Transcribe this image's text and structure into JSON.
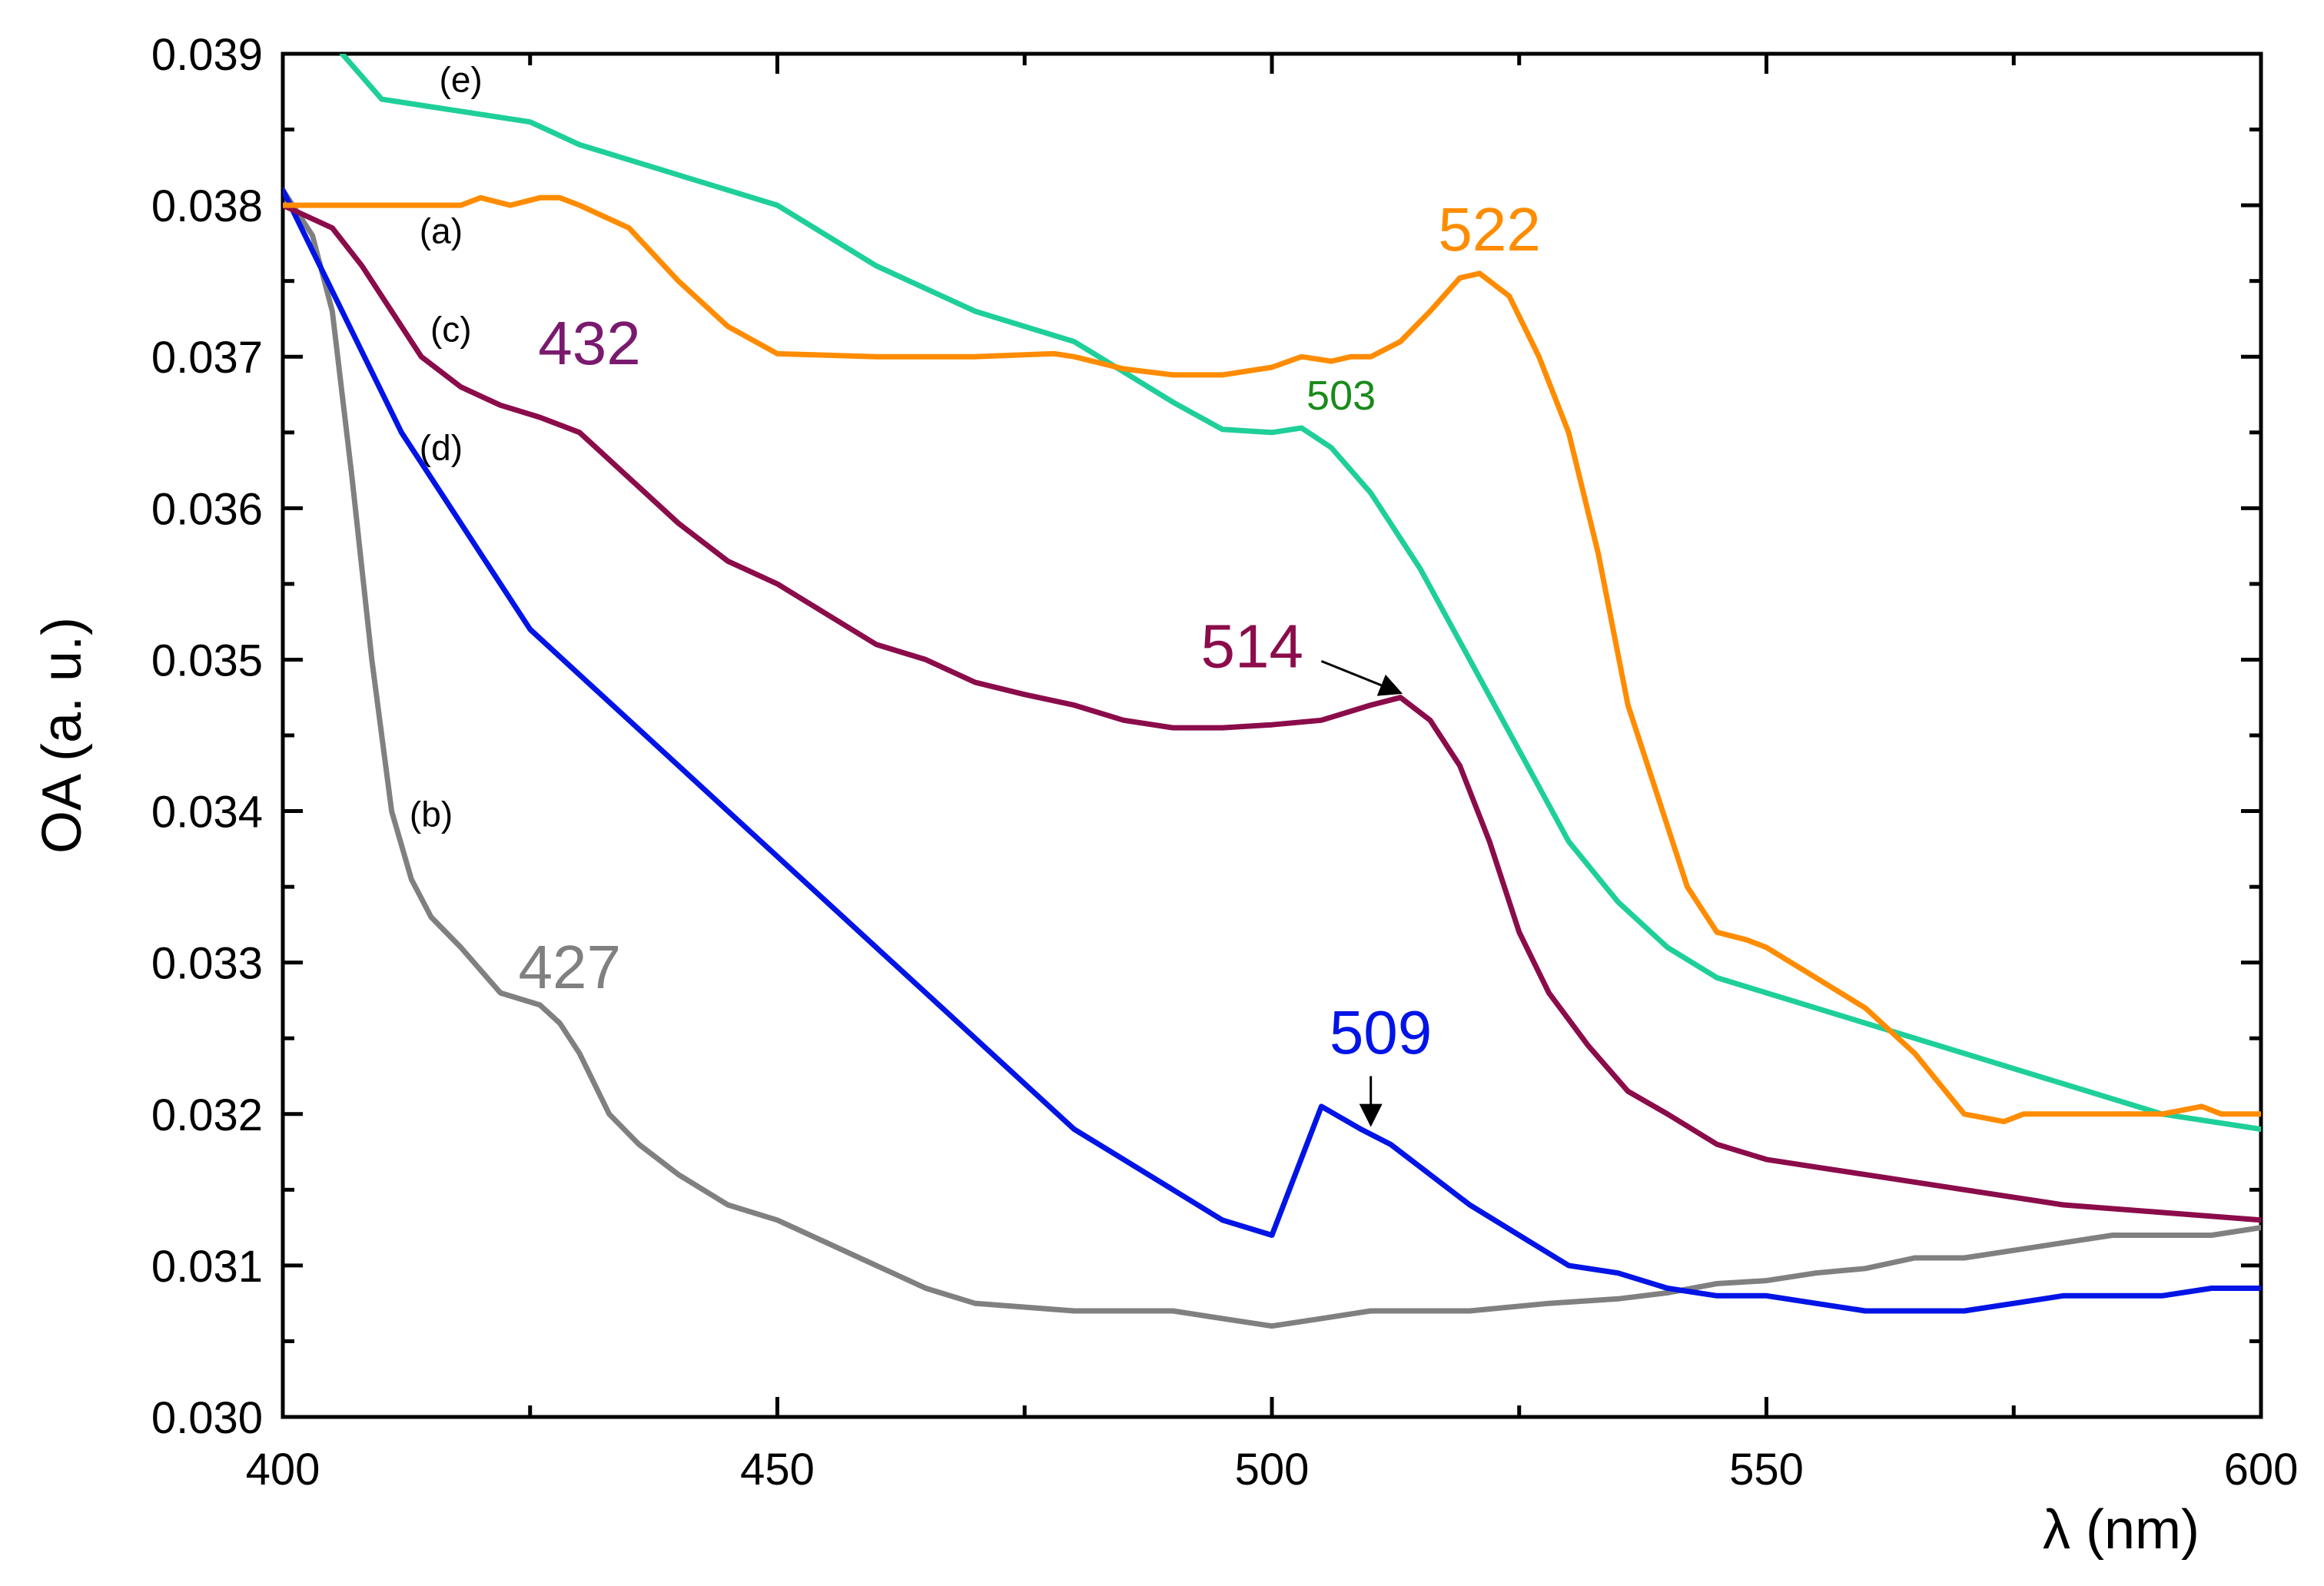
{
  "chart_data": {
    "type": "line",
    "title": "",
    "xlabel": "λ (nm)",
    "ylabel": "OA (a. u.)",
    "xlim": [
      400,
      600
    ],
    "ylim": [
      0.03,
      0.039
    ],
    "grid": false,
    "x_ticks": [
      400,
      450,
      500,
      550,
      600
    ],
    "x_tick_labels": [
      "400",
      "450",
      "500",
      "550",
      "600"
    ],
    "y_ticks": [
      0.03,
      0.031,
      0.032,
      0.033,
      0.034,
      0.035,
      0.036,
      0.037,
      0.038,
      0.039
    ],
    "y_tick_labels": [
      "0.030",
      "0.031",
      "0.032",
      "0.033",
      "0.034",
      "0.035",
      "0.036",
      "0.037",
      "0.038",
      "0.039"
    ],
    "series": [
      {
        "name": "(a)",
        "color": "#ff8c00",
        "points": [
          [
            400,
            0.038
          ],
          [
            410,
            0.038
          ],
          [
            418,
            0.038
          ],
          [
            420,
            0.03805
          ],
          [
            423,
            0.038
          ],
          [
            426,
            0.03805
          ],
          [
            428,
            0.03805
          ],
          [
            430,
            0.038
          ],
          [
            435,
            0.03785
          ],
          [
            440,
            0.0375
          ],
          [
            445,
            0.0372
          ],
          [
            450,
            0.03702
          ],
          [
            455,
            0.03701
          ],
          [
            460,
            0.037
          ],
          [
            470,
            0.037
          ],
          [
            478,
            0.03702
          ],
          [
            480,
            0.037
          ],
          [
            485,
            0.03692
          ],
          [
            490,
            0.03688
          ],
          [
            495,
            0.03688
          ],
          [
            500,
            0.03693
          ],
          [
            503,
            0.037
          ],
          [
            506,
            0.03697
          ],
          [
            508,
            0.037
          ],
          [
            510,
            0.037
          ],
          [
            513,
            0.0371
          ],
          [
            516,
            0.0373
          ],
          [
            519,
            0.03752
          ],
          [
            521,
            0.03755
          ],
          [
            524,
            0.0374
          ],
          [
            527,
            0.037
          ],
          [
            530,
            0.0365
          ],
          [
            533,
            0.0357
          ],
          [
            536,
            0.0347
          ],
          [
            539,
            0.0341
          ],
          [
            542,
            0.0335
          ],
          [
            545,
            0.0332
          ],
          [
            548,
            0.03315
          ],
          [
            550,
            0.0331
          ],
          [
            555,
            0.0329
          ],
          [
            560,
            0.0327
          ],
          [
            565,
            0.0324
          ],
          [
            570,
            0.032
          ],
          [
            574,
            0.03195
          ],
          [
            576,
            0.032
          ],
          [
            580,
            0.032
          ],
          [
            590,
            0.032
          ],
          [
            594,
            0.03205
          ],
          [
            596,
            0.032
          ],
          [
            600,
            0.032
          ]
        ]
      },
      {
        "name": "(b)",
        "color": "#808080",
        "points": [
          [
            400,
            0.0381
          ],
          [
            403,
            0.0378
          ],
          [
            405,
            0.0373
          ],
          [
            407,
            0.0362
          ],
          [
            409,
            0.035
          ],
          [
            411,
            0.034
          ],
          [
            413,
            0.03355
          ],
          [
            415,
            0.0333
          ],
          [
            418,
            0.0331
          ],
          [
            422,
            0.0328
          ],
          [
            426,
            0.03272
          ],
          [
            428,
            0.0326
          ],
          [
            430,
            0.0324
          ],
          [
            433,
            0.032
          ],
          [
            436,
            0.0318
          ],
          [
            440,
            0.0316
          ],
          [
            445,
            0.0314
          ],
          [
            450,
            0.0313
          ],
          [
            455,
            0.03115
          ],
          [
            460,
            0.031
          ],
          [
            465,
            0.03085
          ],
          [
            470,
            0.03075
          ],
          [
            480,
            0.0307
          ],
          [
            490,
            0.0307
          ],
          [
            495,
            0.03065
          ],
          [
            500,
            0.0306
          ],
          [
            505,
            0.03065
          ],
          [
            510,
            0.0307
          ],
          [
            520,
            0.0307
          ],
          [
            528,
            0.03075
          ],
          [
            535,
            0.03078
          ],
          [
            540,
            0.03082
          ],
          [
            545,
            0.03088
          ],
          [
            550,
            0.0309
          ],
          [
            555,
            0.03095
          ],
          [
            560,
            0.03098
          ],
          [
            565,
            0.03105
          ],
          [
            570,
            0.03105
          ],
          [
            575,
            0.0311
          ],
          [
            580,
            0.03115
          ],
          [
            585,
            0.0312
          ],
          [
            590,
            0.0312
          ],
          [
            595,
            0.0312
          ],
          [
            600,
            0.03125
          ]
        ]
      },
      {
        "name": "(c)",
        "color": "#8b0c4a",
        "points": [
          [
            400,
            0.038
          ],
          [
            405,
            0.03785
          ],
          [
            408,
            0.0376
          ],
          [
            411,
            0.0373
          ],
          [
            414,
            0.037
          ],
          [
            418,
            0.0368
          ],
          [
            422,
            0.03668
          ],
          [
            426,
            0.0366
          ],
          [
            430,
            0.0365
          ],
          [
            435,
            0.0362
          ],
          [
            440,
            0.0359
          ],
          [
            445,
            0.03565
          ],
          [
            450,
            0.0355
          ],
          [
            455,
            0.0353
          ],
          [
            460,
            0.0351
          ],
          [
            465,
            0.035
          ],
          [
            470,
            0.03485
          ],
          [
            475,
            0.03477
          ],
          [
            480,
            0.0347
          ],
          [
            485,
            0.0346
          ],
          [
            490,
            0.03455
          ],
          [
            495,
            0.03455
          ],
          [
            500,
            0.03457
          ],
          [
            505,
            0.0346
          ],
          [
            510,
            0.0347
          ],
          [
            513,
            0.03475
          ],
          [
            516,
            0.0346
          ],
          [
            519,
            0.0343
          ],
          [
            522,
            0.0338
          ],
          [
            525,
            0.0332
          ],
          [
            528,
            0.0328
          ],
          [
            532,
            0.03245
          ],
          [
            536,
            0.03215
          ],
          [
            540,
            0.032
          ],
          [
            545,
            0.0318
          ],
          [
            550,
            0.0317
          ],
          [
            555,
            0.03165
          ],
          [
            560,
            0.0316
          ],
          [
            570,
            0.0315
          ],
          [
            580,
            0.0314
          ],
          [
            590,
            0.03135
          ],
          [
            600,
            0.0313
          ]
        ]
      },
      {
        "name": "(d)",
        "color": "#0014e6",
        "points": [
          [
            400,
            0.0381
          ],
          [
            403,
            0.0377
          ],
          [
            406,
            0.0373
          ],
          [
            409,
            0.0369
          ],
          [
            412,
            0.0365
          ],
          [
            416,
            0.0361
          ],
          [
            420,
            0.0357
          ],
          [
            425,
            0.0352
          ],
          [
            430,
            0.0349
          ],
          [
            435,
            0.0346
          ],
          [
            440,
            0.0343
          ],
          [
            445,
            0.034
          ],
          [
            450,
            0.0337
          ],
          [
            455,
            0.0334
          ],
          [
            460,
            0.0331
          ],
          [
            465,
            0.0328
          ],
          [
            470,
            0.0325
          ],
          [
            475,
            0.0322
          ],
          [
            480,
            0.0319
          ],
          [
            485,
            0.0317
          ],
          [
            490,
            0.0315
          ],
          [
            495,
            0.0313
          ],
          [
            500,
            0.0312
          ],
          [
            505,
            0.03205
          ],
          [
            509,
            0.0319
          ],
          [
            512,
            0.0318
          ],
          [
            516,
            0.0316
          ],
          [
            520,
            0.0314
          ],
          [
            525,
            0.0312
          ],
          [
            530,
            0.031
          ],
          [
            535,
            0.03095
          ],
          [
            540,
            0.03085
          ],
          [
            545,
            0.0308
          ],
          [
            550,
            0.0308
          ],
          [
            555,
            0.03075
          ],
          [
            560,
            0.0307
          ],
          [
            565,
            0.0307
          ],
          [
            570,
            0.0307
          ],
          [
            575,
            0.03075
          ],
          [
            580,
            0.0308
          ],
          [
            585,
            0.0308
          ],
          [
            590,
            0.0308
          ],
          [
            595,
            0.03085
          ],
          [
            600,
            0.03085
          ]
        ]
      },
      {
        "name": "(e)",
        "color": "#1fcf9a",
        "points": [
          [
            406,
            0.039
          ],
          [
            410,
            0.0387
          ],
          [
            415,
            0.03865
          ],
          [
            420,
            0.0386
          ],
          [
            425,
            0.03855
          ],
          [
            430,
            0.0384
          ],
          [
            440,
            0.0382
          ],
          [
            450,
            0.038
          ],
          [
            460,
            0.0376
          ],
          [
            470,
            0.0373
          ],
          [
            480,
            0.0371
          ],
          [
            485,
            0.0369
          ],
          [
            490,
            0.0367
          ],
          [
            495,
            0.03652
          ],
          [
            500,
            0.0365
          ],
          [
            503,
            0.03653
          ],
          [
            506,
            0.0364
          ],
          [
            510,
            0.0361
          ],
          [
            515,
            0.0356
          ],
          [
            520,
            0.035
          ],
          [
            525,
            0.0344
          ],
          [
            530,
            0.0338
          ],
          [
            535,
            0.0334
          ],
          [
            540,
            0.0331
          ],
          [
            545,
            0.0329
          ],
          [
            550,
            0.0328
          ],
          [
            560,
            0.0326
          ],
          [
            570,
            0.0324
          ],
          [
            580,
            0.0322
          ],
          [
            590,
            0.032
          ],
          [
            600,
            0.0319
          ]
        ]
      }
    ],
    "curve_tags": [
      {
        "text": "(e)",
        "x": 418,
        "y": 0.03875
      },
      {
        "text": "(a)",
        "x": 416,
        "y": 0.03775
      },
      {
        "text": "(c)",
        "x": 417,
        "y": 0.0371
      },
      {
        "text": "(d)",
        "x": 416,
        "y": 0.03632
      },
      {
        "text": "(b)",
        "x": 415,
        "y": 0.0339
      }
    ],
    "peak_labels": [
      {
        "text": "522",
        "x": 522,
        "y": 0.0377,
        "color": "#ff8c00",
        "size": "large"
      },
      {
        "text": "432",
        "x": 431,
        "y": 0.03695,
        "color": "#7a1a6e",
        "size": "large"
      },
      {
        "text": "503",
        "x": 507,
        "y": 0.03665,
        "color": "#1a8a1a",
        "size": "small"
      },
      {
        "text": "514",
        "x": 498,
        "y": 0.03495,
        "color": "#8b0c4a",
        "size": "large"
      },
      {
        "text": "427",
        "x": 429,
        "y": 0.03283,
        "color": "#808080",
        "size": "large"
      },
      {
        "text": "509",
        "x": 511,
        "y": 0.0324,
        "color": "#0014e6",
        "size": "large"
      }
    ],
    "arrows": [
      {
        "from": [
          505,
          0.03499
        ],
        "to": [
          513,
          0.03478
        ]
      },
      {
        "from": [
          510,
          0.03225
        ],
        "to": [
          510,
          0.03193
        ]
      }
    ]
  }
}
